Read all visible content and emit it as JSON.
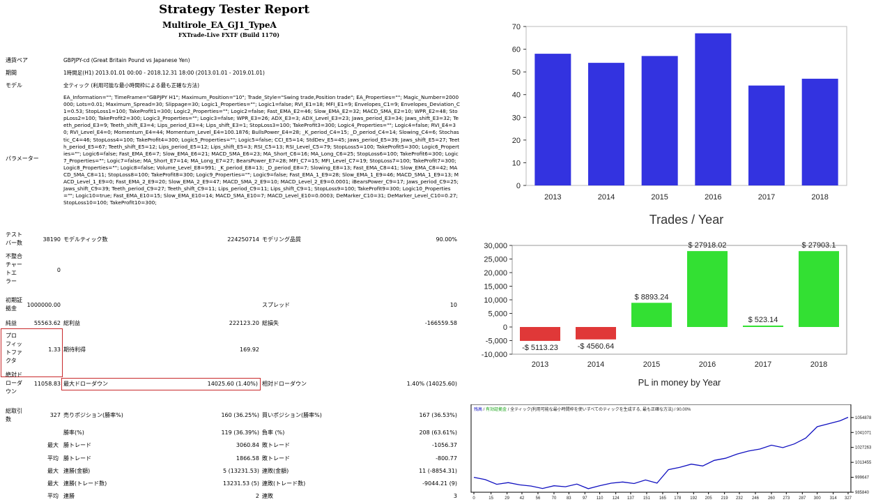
{
  "report": {
    "title": "Strategy Tester Report",
    "ea_name": "Multirole_EA_GJ1_TypeA",
    "build": "FXTrade-Live FXTF (Build 1170)",
    "symbol_label": "通貨ペア",
    "symbol_value": "GBPJPY-cd (Great Britain Pound vs Japanese Yen)",
    "period_label": "期間",
    "period_value": "1時間足(H1) 2013.01.01 00:00 - 2018.12.31 18:00 (2013.01.01 - 2019.01.01)",
    "model_label": "モデル",
    "model_value": "全ティック (利用可能な最小時間枠による最も正確な方法)",
    "params_label": "パラメーター",
    "params_value": "EA_Information=\"\"; TimeFrame=\"GBPJPY H1\"; Maximum_Position=\"10\"; Trade_Style=\"Swing trade,Position trade\"; EA_Properties=\"\"; Magic_Number=2000000; Lots=0.01; Maximum_Spread=30; Slippage=30; Logic1_Properties=\"\"; Logic1=false; RVI_E1=18; MFI_E1=9; Envelopes_C1=9; Envelopes_Deviation_C1=0.53; StopLoss1=100; TakeProfit1=300; Logic2_Properties=\"\"; Logic2=false; Fast_EMA_E2=46; Slow_EMA_E2=32; MACD_SMA_E2=10; WPR_E2=48; StopLoss2=100; TakeProfit2=300; Logic3_Properties=\"\"; Logic3=false; WPR_E3=26; ADX_E3=3; ADX_Level_E3=23; Jaws_period_E3=34; Jaws_shift_E3=32; Teeth_period_E3=9; Teeth_shift_E3=4; Lips_period_E3=4; Lips_shift_E3=1; StopLoss3=100; TakeProfit3=300; Logic4_Properties=\"\"; Logic4=false; RVI_E4=30; RVI_Level_E4=0; Momentum_E4=44; Momentum_Level_E4=100.1876; BullsPower_E4=28; _K_period_C4=15; _D_period_C4=14; Slowing_C4=6; Stochastic_C4=46; StopLoss4=100; TakeProfit4=300; Logic5_Properties=\"\"; Logic5=false; CCI_E5=14; StdDev_E5=45; Jaws_period_E5=39; Jaws_shift_E5=27; Teeth_period_E5=67; Teeth_shift_E5=12; Lips_period_E5=12; Lips_shift_E5=3; RSI_C5=13; RSI_Level_C5=79; StopLoss5=100; TakeProfit5=300; Logic6_Properties=\"\"; Logic6=false; Fast_EMA_E6=7; Slow_EMA_E6=21; MACD_SMA_E6=23; MA_Short_C6=16; MA_Long_C6=25; StopLoss6=100; TakeProfit6=300; Logic7_Properties=\"\"; Logic7=false; MA_Short_E7=14; MA_Long_E7=27; BearsPower_E7=28; MFI_C7=15; MFI_Level_C7=19; StopLoss7=100; TakeProfit7=300; Logic8_Properties=\"\"; Logic8=false; Volume_Level_E8=991; _K_period_E8=13; _D_period_E8=7; Slowing_E8=13; Fast_EMA_C8=41; Slow_EMA_C8=42; MACD_SMA_C8=11; StopLoss8=100; TakeProfit8=300; Logic9_Properties=\"\"; Logic9=false; Fast_EMA_1_E9=28; Slow_EMA_1_E9=46; MACD_SMA_1_E9=13; MACD_Level_1_E9=0; Fast_EMA_2_E9=20; Slow_EMA_2_E9=47; MACD_SMA_2_E9=10; MACD_Level_2_E9=0.0001; iBearsPower_C9=17; Jaws_period_C9=25; Jaws_shift_C9=39; Teeth_period_C9=27; Teeth_shift_C9=11; Lips_period_C9=11; Lips_shift_C9=1; StopLoss9=100; TakeProfit9=300; Logic10_Properties=\"\"; Logic10=true; Fast_EMA_E10=15; Slow_EMA_E10=14; MACD_SMA_E10=7; MACD_Level_E10=0.0003; DeMarker_C10=31; DeMarker_Level_C10=0.27; StopLoss10=100; TakeProfit10=300;",
    "bars_label": "テスト\nバー数",
    "bars_value": "38190",
    "ticks_label": "モデルティック数",
    "ticks_value": "224250714",
    "quality_label": "モデリング品質",
    "quality_value": "90.00%",
    "errors_label": "不整合\nチャー\nトエ\nラー",
    "errors_value": "0",
    "deposit_label": "初期証\n拠金",
    "deposit_value": "1000000.00",
    "spread_label": "スプレッド",
    "spread_value": "10",
    "net_label": "純益",
    "net_value": "55563.62",
    "gross_profit_label": "総利益",
    "gross_profit_value": "222123.20",
    "gross_loss_label": "総損失",
    "gross_loss_value": "-166559.58",
    "pf_label": "プロ\nフィッ\nトファ\nクタ",
    "pf_value": "1.33",
    "expected_label": "期待利得",
    "expected_value": "169.92",
    "abs_dd_label": "絶対ド\nローダ\nウン",
    "abs_dd_value": "11058.83",
    "max_dd_label": "最大ドローダウン",
    "max_dd_value": "14025.60 (1.40%)",
    "rel_dd_label": "相対ドローダウン",
    "rel_dd_value": "1.40% (14025.60)",
    "trades_label": "総取引\n数",
    "trades_value": "327",
    "short_label": "売りポジション(勝率%)",
    "short_value": "160 (36.25%)",
    "long_label": "買いポジション(勝率%)",
    "long_value": "167 (36.53%)",
    "win_label": "勝率(%)",
    "win_value": "119 (36.39%)",
    "loss_label": "負率 (%)",
    "loss_value": "208 (63.61%)",
    "max_prefix": "最大",
    "avg_prefix": "平均",
    "largest_win_label": "勝トレード",
    "largest_win_value": "3060.84",
    "largest_loss_label": "敗トレード",
    "largest_loss_value": "-1056.37",
    "avg_win_label": "勝トレード",
    "avg_win_value": "1866.58",
    "avg_loss_label": "敗トレード",
    "avg_loss_value": "-800.77",
    "consec_wins_amt_label": "連勝(金額)",
    "consec_wins_amt_value": "5 (13231.53)",
    "consec_losses_amt_label": "連敗(金額)",
    "consec_losses_amt_value": "11 (-8854.31)",
    "consec_wins_cnt_label": "連勝(トレード数)",
    "consec_wins_cnt_value": "13231.53 (5)",
    "consec_losses_cnt_label": "連敗(トレード数)",
    "consec_losses_cnt_value": "-9044.21 (9)",
    "avg_wins_label": "連勝",
    "avg_wins_value": "2",
    "avg_losses_label": "連敗",
    "avg_losses_value": "3"
  },
  "chart_data": [
    {
      "type": "bar",
      "title": "Trades / Year",
      "categories": [
        "2013",
        "2014",
        "2015",
        "2016",
        "2017",
        "2018"
      ],
      "values": [
        58,
        54,
        57,
        67,
        44,
        47
      ],
      "ylim": [
        0,
        70
      ],
      "yticks": [
        0,
        10,
        20,
        30,
        40,
        50,
        60,
        70
      ],
      "color": "#3333e0"
    },
    {
      "type": "bar",
      "title": "PL in money by Year",
      "categories": [
        "2013",
        "2014",
        "2015",
        "2016",
        "2017",
        "2018"
      ],
      "values": [
        -5113.23,
        -4560.64,
        8893.24,
        27918.02,
        523.14,
        27903.1
      ],
      "labels": [
        "-$ 5113.23",
        "-$ 4560.64",
        "$ 8893.24",
        "$ 27918.02",
        "$ 523.14",
        "$ 27903.1"
      ],
      "ylim": [
        -10000,
        30000
      ],
      "yticks": [
        "30,000",
        "25,000",
        "20,000",
        "15,000",
        "10,000",
        "5,000",
        "0",
        "-5,000",
        "-10,000"
      ],
      "positive_color": "#33e033",
      "negative_color": "#e03838"
    },
    {
      "type": "line",
      "header": "残高 / 有効証拠金 / 全ティック(利用可能な最小時間枠を使いすべてのティックを生成する, 最も正確な方法) / 90.00%",
      "header_parts": [
        "残高",
        "有効証拠金",
        "全ティック(利用可能な最小時間枠を使いすべてのティックを生成する, 最も正確な方法)",
        "90.00%"
      ],
      "xticks": [
        "0",
        "15",
        "29",
        "42",
        "56",
        "70",
        "83",
        "97",
        "110",
        "124",
        "137",
        "151",
        "165",
        "178",
        "192",
        "205",
        "219",
        "232",
        "246",
        "260",
        "273",
        "287",
        "300",
        "314",
        "327"
      ],
      "yticks": [
        "1054878",
        "1041071",
        "1027263",
        "1013455",
        "999647",
        "985840"
      ],
      "ylim": [
        985840,
        1058000
      ],
      "x": [
        0,
        10,
        20,
        30,
        40,
        50,
        60,
        70,
        80,
        90,
        100,
        110,
        120,
        130,
        140,
        150,
        160,
        170,
        180,
        190,
        200,
        210,
        220,
        230,
        240,
        250,
        260,
        270,
        280,
        290,
        300,
        310,
        320,
        327
      ],
      "y": [
        999600,
        997500,
        993200,
        994700,
        992700,
        991600,
        989300,
        991800,
        990900,
        993400,
        989100,
        991900,
        994200,
        995300,
        993900,
        997200,
        994300,
        1006700,
        1008900,
        1011800,
        1010100,
        1015300,
        1017300,
        1021100,
        1023900,
        1025800,
        1029300,
        1027100,
        1030500,
        1035900,
        1046400,
        1049100,
        1051900,
        1055100
      ],
      "color": "#1010c0"
    }
  ]
}
